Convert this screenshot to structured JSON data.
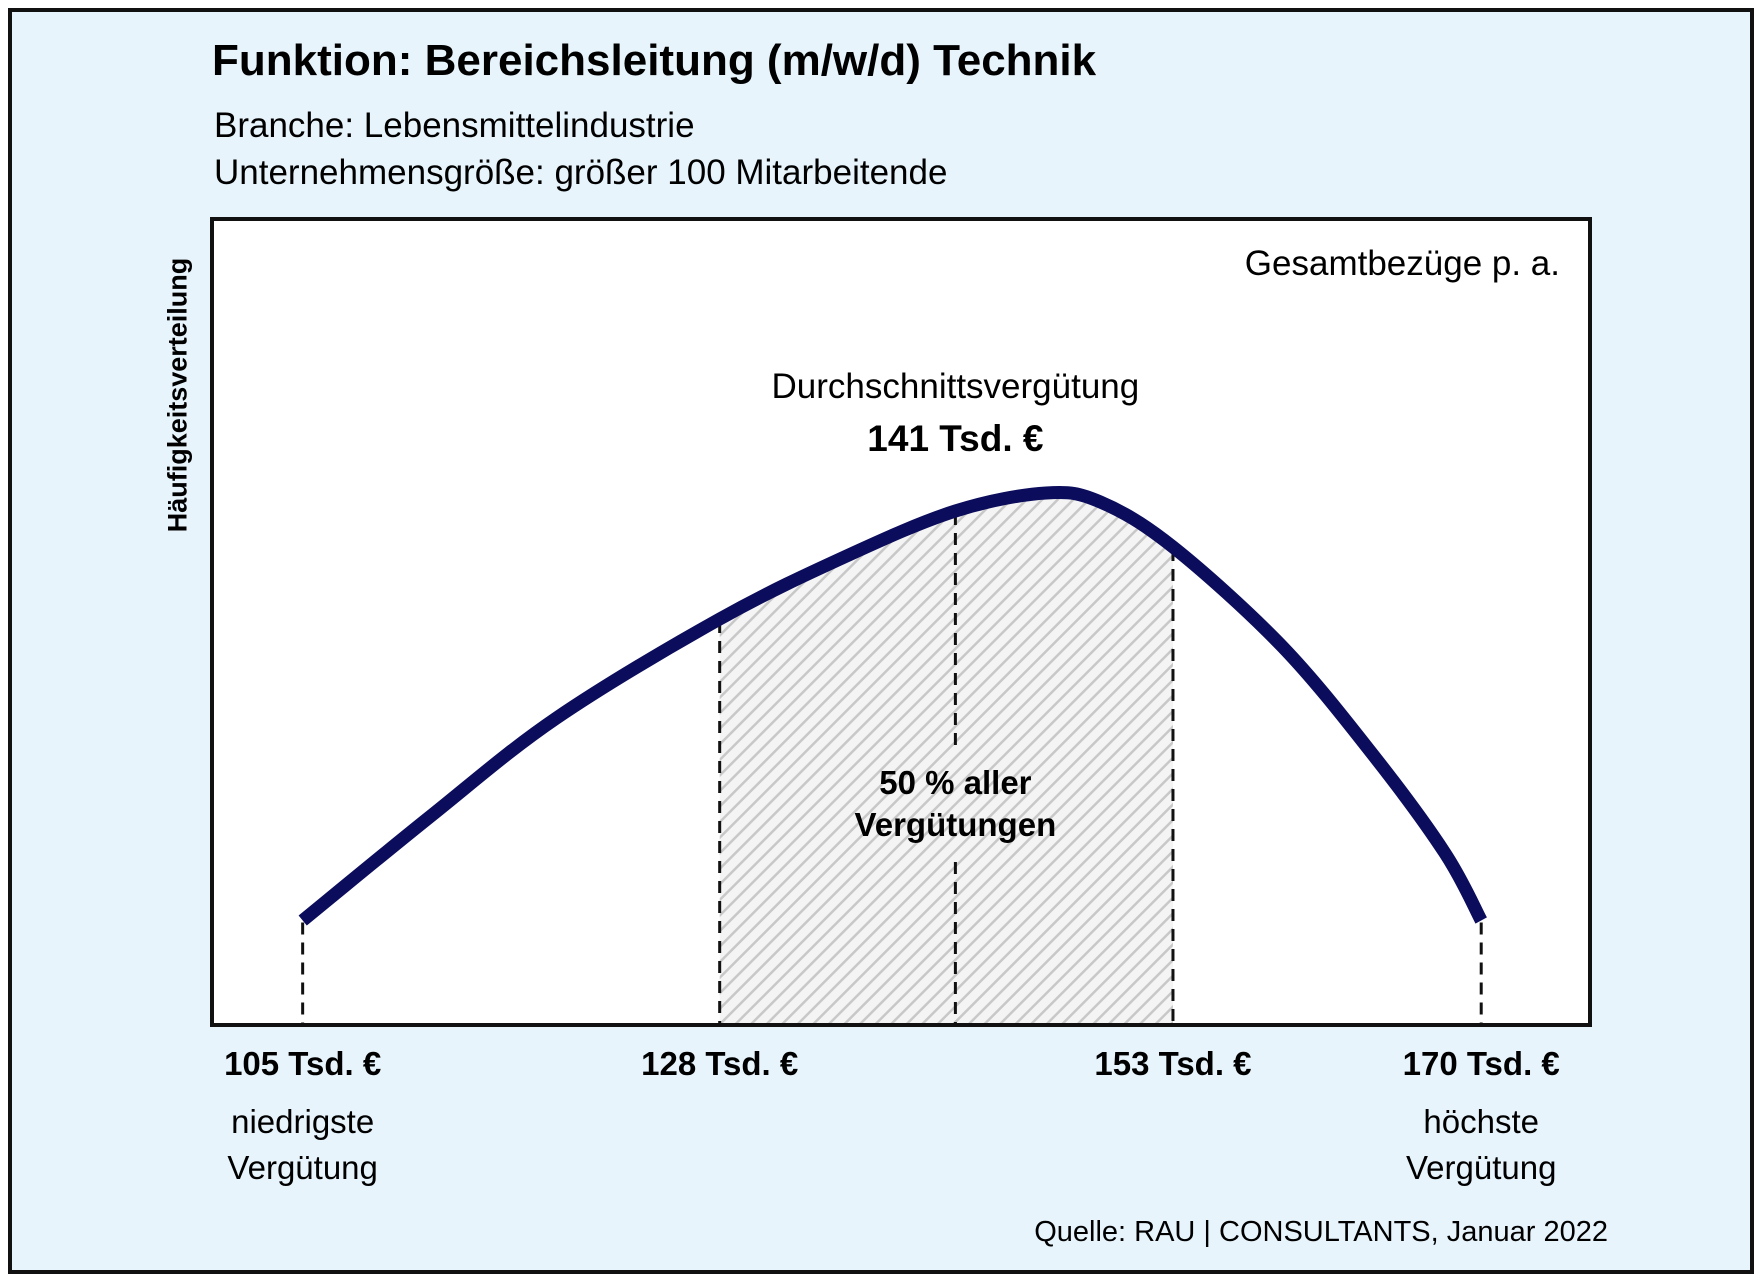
{
  "header": {
    "title": "Funktion: Bereichsleitung (m/w/d) Technik",
    "branche": "Branche: Lebensmittelindustrie",
    "groesse": "Unternehmensgröße: größer 100 Mitarbeitende"
  },
  "footer": {
    "source": "Quelle: RAU | CONSULTANTS, Januar 2022"
  },
  "colors": {
    "curve": "#0b0c5b",
    "background": "#e7f4fc",
    "plot": "#ffffff",
    "hatch": "#c8c8c8"
  },
  "chart_data": {
    "type": "area",
    "title": "Gesamtbezüge p. a.",
    "xlabel": "",
    "ylabel": "Häufigkeitsverteilung",
    "unit": "Tsd. €",
    "xlim": [
      100,
      176
    ],
    "curve_points": [
      {
        "x": 105,
        "y": 0.05
      },
      {
        "x": 112,
        "y": 0.28
      },
      {
        "x": 119,
        "y": 0.5
      },
      {
        "x": 128,
        "y": 0.72
      },
      {
        "x": 135,
        "y": 0.86
      },
      {
        "x": 141,
        "y": 0.96
      },
      {
        "x": 146,
        "y": 1.0
      },
      {
        "x": 149,
        "y": 0.98
      },
      {
        "x": 153,
        "y": 0.88
      },
      {
        "x": 159,
        "y": 0.66
      },
      {
        "x": 164,
        "y": 0.42
      },
      {
        "x": 168,
        "y": 0.2
      },
      {
        "x": 170,
        "y": 0.05
      }
    ],
    "markers": [
      {
        "x": 105,
        "value": "105 Tsd. €",
        "description": [
          "niedrigste",
          "Vergütung"
        ]
      },
      {
        "x": 128,
        "value": "128 Tsd. €",
        "description": []
      },
      {
        "x": 153,
        "value": "153 Tsd. €",
        "description": []
      },
      {
        "x": 170,
        "value": "170 Tsd. €",
        "description": [
          "höchste",
          "Vergütung"
        ]
      }
    ],
    "average": {
      "x": 141,
      "label": "Durchschnittsvergütung",
      "value": "141 Tsd. €"
    },
    "shaded_range": {
      "from": 128,
      "to": 153,
      "label": [
        "50 % aller",
        "Vergütungen"
      ]
    }
  }
}
